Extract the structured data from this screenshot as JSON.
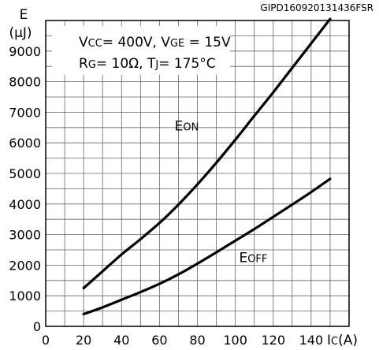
{
  "doc_code": "GIPD160920131436FSR",
  "conditions": {
    "line1": [
      {
        "text": "V",
        "sub": false
      },
      {
        "text": "CC",
        "sub": true
      },
      {
        "text": "= 400V, V",
        "sub": false
      },
      {
        "text": "GE",
        "sub": true
      },
      {
        "text": " = 15V",
        "sub": false
      }
    ],
    "line2": [
      {
        "text": "R",
        "sub": false
      },
      {
        "text": "G",
        "sub": true
      },
      {
        "text": "= 10Ω, T",
        "sub": false
      },
      {
        "text": "J",
        "sub": true
      },
      {
        "text": "= 175°C",
        "sub": false
      }
    ]
  },
  "chart_data": {
    "type": "line",
    "ylabel": {
      "symbol": "E",
      "unit": "(µJ)"
    },
    "xlabel": {
      "symbol": "I",
      "sub": "C",
      "unit": "(A)"
    },
    "xlim": [
      0,
      160
    ],
    "ylim": [
      0,
      10000
    ],
    "x_ticks": [
      0,
      20,
      40,
      60,
      80,
      100,
      120,
      140
    ],
    "y_ticks": [
      0,
      1000,
      2000,
      3000,
      4000,
      5000,
      6000,
      7000,
      8000,
      9000
    ],
    "grid": true,
    "series": [
      {
        "name": "EON",
        "label_parts": [
          {
            "text": "E",
            "sub": false
          },
          {
            "text": "ON",
            "sub": true
          }
        ],
        "label_at": {
          "x": 68,
          "y": 6400
        },
        "x": [
          20,
          30,
          40,
          50,
          60,
          70,
          80,
          90,
          100,
          110,
          120,
          130,
          140,
          150
        ],
        "values": [
          1250,
          1800,
          2350,
          2850,
          3380,
          3980,
          4640,
          5350,
          6100,
          6880,
          7650,
          8450,
          9250,
          10050
        ]
      },
      {
        "name": "EOFF",
        "label_parts": [
          {
            "text": "E",
            "sub": false
          },
          {
            "text": "OFF",
            "sub": true
          }
        ],
        "label_at": {
          "x": 102,
          "y": 2100
        },
        "x": [
          20,
          30,
          40,
          50,
          60,
          70,
          80,
          90,
          100,
          110,
          120,
          130,
          140,
          150
        ],
        "values": [
          400,
          620,
          870,
          1120,
          1390,
          1700,
          2050,
          2420,
          2800,
          3180,
          3580,
          3980,
          4390,
          4820
        ]
      }
    ]
  }
}
